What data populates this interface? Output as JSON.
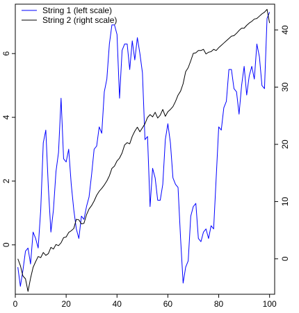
{
  "chart_data": {
    "type": "line",
    "title": "",
    "xlabel": "",
    "ylabel_left": "",
    "ylabel_right": "",
    "grid": false,
    "legend_position": "top-left",
    "xlim": [
      0,
      102
    ],
    "ylim_left": [
      -1.55,
      7.55
    ],
    "ylim_right": [
      -6.2,
      44.5
    ],
    "x_ticks": [
      0,
      20,
      40,
      60,
      80,
      100
    ],
    "y_left_ticks": [
      0,
      2,
      4,
      6
    ],
    "y_right_ticks": [
      0,
      10,
      20,
      30,
      40
    ],
    "series": [
      {
        "name": "String 1 (left scale)",
        "axis": "left",
        "color": "#0000ff",
        "x": [
          1,
          2,
          3,
          4,
          5,
          6,
          7,
          8,
          9,
          10,
          11,
          12,
          13,
          14,
          15,
          16,
          17,
          18,
          19,
          20,
          21,
          22,
          23,
          24,
          25,
          26,
          27,
          28,
          29,
          30,
          31,
          32,
          33,
          34,
          35,
          36,
          37,
          38,
          39,
          40,
          41,
          42,
          43,
          44,
          45,
          46,
          47,
          48,
          49,
          50,
          51,
          52,
          53,
          54,
          55,
          56,
          57,
          58,
          59,
          60,
          61,
          62,
          63,
          64,
          65,
          66,
          67,
          68,
          69,
          70,
          71,
          72,
          73,
          74,
          75,
          76,
          77,
          78,
          79,
          80,
          81,
          82,
          83,
          84,
          85,
          86,
          87,
          88,
          89,
          90,
          91,
          92,
          93,
          94,
          95,
          96,
          97,
          98,
          99,
          100
        ],
        "values": [
          -0.7,
          -1.3,
          -0.8,
          -0.2,
          -0.1,
          -0.6,
          0.4,
          0.2,
          -0.1,
          1.1,
          3.2,
          3.6,
          1.8,
          0.4,
          1.1,
          2.3,
          2.9,
          4.6,
          2.7,
          2.6,
          3.0,
          1.9,
          1.1,
          0.5,
          0.2,
          0.9,
          0.8,
          1.2,
          1.5,
          2.2,
          3.0,
          3.1,
          3.7,
          3.5,
          4.8,
          5.2,
          6.3,
          6.9,
          6.9,
          6.6,
          4.6,
          6.1,
          6.3,
          6.3,
          5.5,
          6.4,
          5.8,
          6.5,
          6.0,
          5.4,
          3.3,
          3.4,
          1.2,
          2.4,
          2.1,
          1.4,
          1.4,
          1.9,
          3.3,
          3.8,
          3.2,
          2.1,
          1.9,
          1.8,
          0.2,
          -1.2,
          -0.7,
          -0.5,
          0.9,
          1.2,
          1.3,
          0.2,
          0.1,
          0.4,
          0.5,
          0.2,
          0.6,
          0.5,
          2.1,
          3.7,
          3.6,
          4.3,
          4.5,
          5.5,
          5.5,
          4.9,
          4.8,
          4.1,
          5.0,
          5.6,
          4.7,
          5.3,
          5.6,
          5.2,
          6.3,
          5.9,
          5.0,
          4.9,
          7.1,
          7.3
        ]
      },
      {
        "name": "String 2 (right scale)",
        "axis": "right",
        "color": "#000000",
        "x": [
          1,
          2,
          3,
          4,
          5,
          6,
          7,
          8,
          9,
          10,
          11,
          12,
          13,
          14,
          15,
          16,
          17,
          18,
          19,
          20,
          21,
          22,
          23,
          24,
          25,
          26,
          27,
          28,
          29,
          30,
          31,
          32,
          33,
          34,
          35,
          36,
          37,
          38,
          39,
          40,
          41,
          42,
          43,
          44,
          45,
          46,
          47,
          48,
          49,
          50,
          51,
          52,
          53,
          54,
          55,
          56,
          57,
          58,
          59,
          60,
          61,
          62,
          63,
          64,
          65,
          66,
          67,
          68,
          69,
          70,
          71,
          72,
          73,
          74,
          75,
          76,
          77,
          78,
          79,
          80,
          81,
          82,
          83,
          84,
          85,
          86,
          87,
          88,
          89,
          90,
          91,
          92,
          93,
          94,
          95,
          96,
          97,
          98,
          99,
          100
        ],
        "values": [
          0,
          -1.2,
          -3,
          -3.5,
          -5.7,
          -3.4,
          -1.5,
          -0.5,
          0.4,
          0.2,
          1.1,
          0.6,
          0.9,
          2.0,
          1.7,
          2.5,
          2.3,
          2.8,
          3.7,
          3.8,
          4.6,
          4.9,
          5.3,
          6.9,
          6.8,
          6.1,
          6.2,
          7.7,
          8.7,
          9.3,
          10.1,
          11.1,
          11.8,
          12.3,
          12.9,
          13.6,
          14.5,
          15.8,
          16.2,
          17.1,
          17.6,
          18.5,
          19.9,
          20.3,
          20.1,
          21.4,
          22.3,
          23.0,
          22.2,
          22.9,
          23.6,
          24.7,
          25.2,
          24.8,
          25.6,
          24.6,
          25.1,
          26.1,
          24.9,
          25.7,
          26.1,
          26.6,
          27.5,
          28.6,
          29.3,
          30.6,
          32.7,
          33.4,
          34.6,
          35.9,
          36.0,
          36.4,
          36.4,
          36.6,
          35.8,
          36.1,
          36.2,
          36.6,
          36.4,
          36.9,
          37.3,
          37.7,
          38.1,
          38.5,
          38.9,
          39.0,
          39.4,
          39.9,
          40.3,
          40.3,
          40.8,
          41.2,
          41.5,
          41.9,
          42.0,
          42.4,
          42.8,
          43.1,
          43.6,
          41.2
        ]
      }
    ]
  }
}
